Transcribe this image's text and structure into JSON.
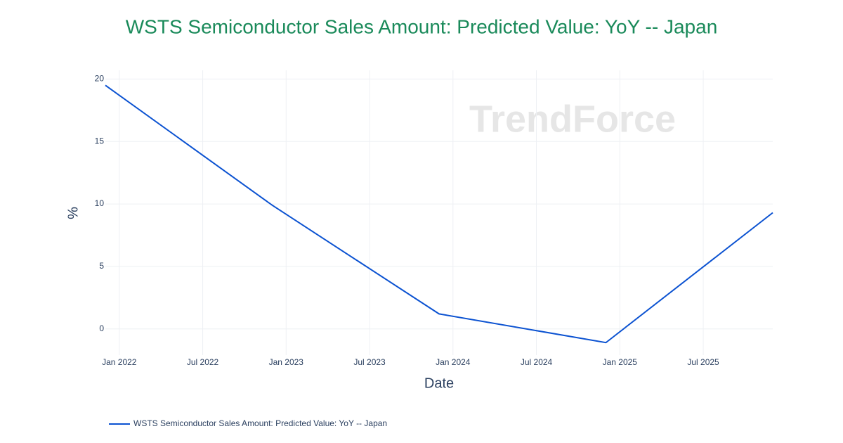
{
  "chart_data": {
    "type": "line",
    "title": "WSTS Semiconductor Sales Amount: Predicted Value: YoY -- Japan",
    "x_label": "Date",
    "y_label": "%",
    "watermark": "TrendForce",
    "x": [
      "2021-12",
      "2022-12",
      "2023-12",
      "2024-12",
      "2025-12"
    ],
    "series": [
      {
        "name": "WSTS Semiconductor Sales Amount: Predicted Value: YoY -- Japan",
        "color": "#0b52d1",
        "values": [
          19.5,
          9.9,
          1.2,
          -1.1,
          9.3
        ]
      }
    ],
    "xlim": [
      "2021-12",
      "2025-12"
    ],
    "xticks": [
      {
        "value": "2022-01",
        "label": "Jan 2022"
      },
      {
        "value": "2022-07",
        "label": "Jul 2022"
      },
      {
        "value": "2023-01",
        "label": "Jan 2023"
      },
      {
        "value": "2023-07",
        "label": "Jul 2023"
      },
      {
        "value": "2024-01",
        "label": "Jan 2024"
      },
      {
        "value": "2024-07",
        "label": "Jul 2024"
      },
      {
        "value": "2025-01",
        "label": "Jan 2025"
      },
      {
        "value": "2025-07",
        "label": "Jul 2025"
      }
    ],
    "ylim": [
      -2.1,
      20.7
    ],
    "yticks": [
      0,
      5,
      10,
      15,
      20
    ],
    "grid": true,
    "legend": "bottom-left"
  }
}
